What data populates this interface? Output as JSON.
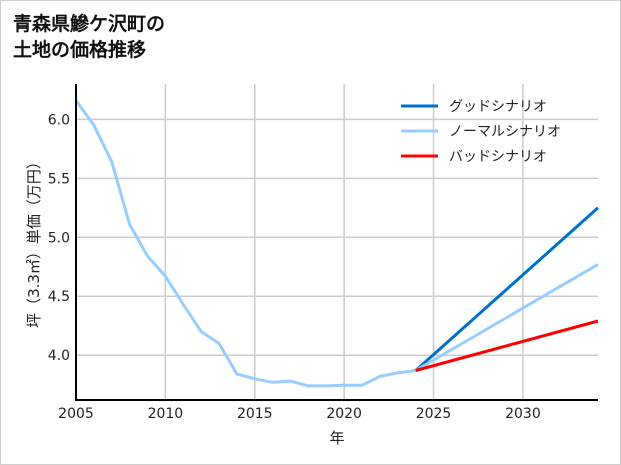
{
  "chart_data": {
    "type": "line",
    "title_lines": [
      "青森県鰺ケ沢町の",
      "土地の価格推移"
    ],
    "xlabel": "年",
    "ylabel": "坪（3.3㎡）単価（万円）",
    "xlim": [
      2005,
      2034.2
    ],
    "ylim": [
      3.62,
      6.3
    ],
    "xticks": [
      2005,
      2010,
      2015,
      2020,
      2025,
      2030
    ],
    "yticks": [
      4.0,
      4.5,
      5.0,
      5.5,
      6.0
    ],
    "ytick_labels": [
      "4.0",
      "4.5",
      "5.0",
      "5.5",
      "6.0"
    ],
    "grid": true,
    "legend_position": "top-right",
    "series": [
      {
        "name": "ノーマルシナリオ",
        "color": "#99ccff",
        "x": [
          2005,
          2006,
          2007,
          2008,
          2009,
          2010,
          2011,
          2012,
          2013,
          2014,
          2015,
          2016,
          2017,
          2018,
          2019,
          2020,
          2021,
          2022,
          2023,
          2024
        ],
        "y": [
          6.16,
          5.95,
          5.64,
          5.11,
          4.84,
          4.67,
          4.43,
          4.2,
          4.1,
          3.84,
          3.8,
          3.77,
          3.78,
          3.74,
          3.74,
          3.745,
          3.745,
          3.82,
          3.85,
          3.87
        ]
      },
      {
        "name": "グッドシナリオ",
        "color": "#0070cc",
        "x": [
          2024,
          2034.2
        ],
        "y": [
          3.87,
          5.25
        ]
      },
      {
        "name": "ノーマルシナリオ",
        "color": "#99ccff",
        "x": [
          2024,
          2034.2
        ],
        "y": [
          3.87,
          4.77
        ]
      },
      {
        "name": "バッドシナリオ",
        "color": "#ff0000",
        "x": [
          2024,
          2034.2
        ],
        "y": [
          3.87,
          4.29
        ]
      }
    ],
    "legend": [
      {
        "label": "グッドシナリオ",
        "color": "#0070cc"
      },
      {
        "label": "ノーマルシナリオ",
        "color": "#99ccff"
      },
      {
        "label": "バッドシナリオ",
        "color": "#ff0000"
      }
    ]
  }
}
